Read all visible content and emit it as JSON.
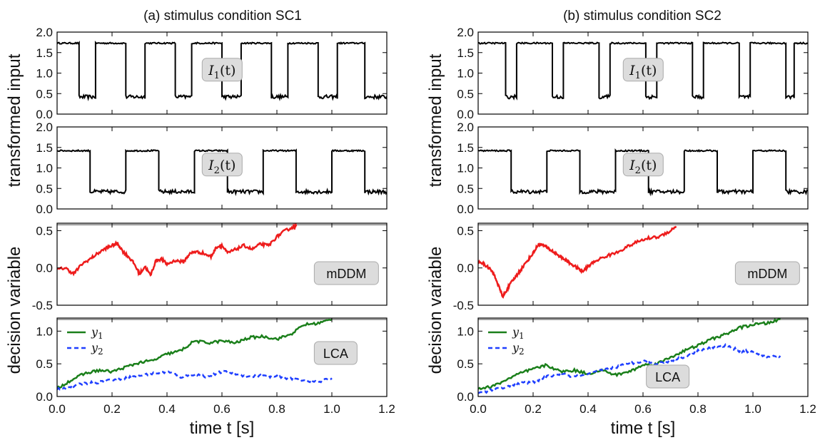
{
  "chart_data": [
    {
      "type": "line",
      "title": "(a) stimulus condition SC1",
      "panel": "I1",
      "ylim": [
        0,
        2.0
      ],
      "yticks": [
        0.0,
        0.5,
        1.0,
        1.5,
        2.0
      ],
      "xlim": [
        0,
        1.2
      ],
      "annotation": "I_1(t)",
      "series": [
        {
          "color": "#000000",
          "style": "square",
          "high": 1.73,
          "low": 0.42,
          "segments": [
            [
              0.0,
              0.08,
              "high"
            ],
            [
              0.08,
              0.14,
              "low"
            ],
            [
              0.14,
              0.25,
              "high"
            ],
            [
              0.25,
              0.32,
              "low"
            ],
            [
              0.32,
              0.43,
              "high"
            ],
            [
              0.43,
              0.49,
              "low"
            ],
            [
              0.49,
              0.6,
              "high"
            ],
            [
              0.6,
              0.67,
              "low"
            ],
            [
              0.67,
              0.78,
              "high"
            ],
            [
              0.78,
              0.84,
              "low"
            ],
            [
              0.84,
              0.95,
              "high"
            ],
            [
              0.95,
              1.02,
              "low"
            ],
            [
              1.02,
              1.12,
              "high"
            ],
            [
              1.12,
              1.2,
              "low"
            ]
          ]
        }
      ]
    },
    {
      "type": "line",
      "panel": "I2",
      "ylim": [
        0,
        2.0
      ],
      "yticks": [
        0.0,
        0.5,
        1.0,
        1.5,
        2.0
      ],
      "xlim": [
        0,
        1.2
      ],
      "annotation": "I_2(t)",
      "series": [
        {
          "color": "#000000",
          "style": "square",
          "high": 1.42,
          "low": 0.42,
          "segments": [
            [
              0.0,
              0.12,
              "high"
            ],
            [
              0.12,
              0.25,
              "low"
            ],
            [
              0.25,
              0.37,
              "high"
            ],
            [
              0.37,
              0.5,
              "low"
            ],
            [
              0.5,
              0.62,
              "high"
            ],
            [
              0.62,
              0.75,
              "low"
            ],
            [
              0.75,
              0.87,
              "high"
            ],
            [
              0.87,
              1.0,
              "low"
            ],
            [
              1.0,
              1.12,
              "high"
            ],
            [
              1.12,
              1.2,
              "low"
            ]
          ]
        }
      ]
    },
    {
      "type": "line",
      "panel": "mDDM",
      "ylim": [
        -0.5,
        0.6
      ],
      "yticks": [
        -0.5,
        0.0,
        0.5
      ],
      "xlim": [
        0,
        1.2
      ],
      "threshold": 0.58,
      "annotation": "mDDM",
      "series": [
        {
          "color": "#ee1c1c",
          "x": [
            0.0,
            0.03,
            0.06,
            0.09,
            0.12,
            0.15,
            0.18,
            0.2,
            0.22,
            0.24,
            0.26,
            0.28,
            0.3,
            0.32,
            0.34,
            0.36,
            0.38,
            0.4,
            0.43,
            0.46,
            0.48,
            0.5,
            0.53,
            0.56,
            0.58,
            0.6,
            0.62,
            0.65,
            0.68,
            0.71,
            0.74,
            0.77,
            0.8,
            0.83,
            0.86,
            0.87
          ],
          "y": [
            -0.02,
            0.0,
            -0.08,
            0.05,
            0.12,
            0.2,
            0.27,
            0.3,
            0.33,
            0.22,
            0.15,
            0.06,
            -0.08,
            0.02,
            -0.1,
            0.1,
            0.12,
            0.05,
            0.1,
            0.08,
            0.18,
            0.22,
            0.2,
            0.15,
            0.28,
            0.3,
            0.2,
            0.25,
            0.3,
            0.25,
            0.32,
            0.3,
            0.42,
            0.5,
            0.55,
            0.56
          ]
        }
      ]
    },
    {
      "type": "line",
      "panel": "LCA",
      "ylim": [
        0,
        1.2
      ],
      "yticks": [
        0.0,
        0.5,
        1.0
      ],
      "xlim": [
        0,
        1.2
      ],
      "xticks": [
        0.0,
        0.2,
        0.4,
        0.6,
        0.8,
        1.0,
        1.2
      ],
      "xlabel": "time t [s]",
      "threshold": 1.18,
      "annotation": "LCA",
      "series": [
        {
          "name": "y_1",
          "color": "#1a7f1a",
          "dash": "",
          "x": [
            0.0,
            0.05,
            0.1,
            0.15,
            0.2,
            0.25,
            0.3,
            0.35,
            0.4,
            0.45,
            0.5,
            0.55,
            0.6,
            0.65,
            0.7,
            0.75,
            0.8,
            0.85,
            0.9,
            0.95,
            1.0
          ],
          "y": [
            0.12,
            0.25,
            0.35,
            0.4,
            0.38,
            0.45,
            0.52,
            0.55,
            0.65,
            0.7,
            0.85,
            0.82,
            0.85,
            0.82,
            0.9,
            0.92,
            0.88,
            0.95,
            1.1,
            1.12,
            1.18
          ]
        },
        {
          "name": "y_2",
          "color": "#1f3fff",
          "dash": "6,4",
          "x": [
            0.0,
            0.05,
            0.1,
            0.15,
            0.2,
            0.25,
            0.3,
            0.35,
            0.4,
            0.45,
            0.5,
            0.55,
            0.6,
            0.65,
            0.7,
            0.75,
            0.8,
            0.85,
            0.9,
            0.95,
            1.0
          ],
          "y": [
            0.12,
            0.15,
            0.2,
            0.22,
            0.26,
            0.28,
            0.32,
            0.35,
            0.38,
            0.3,
            0.34,
            0.3,
            0.38,
            0.35,
            0.3,
            0.32,
            0.3,
            0.28,
            0.25,
            0.22,
            0.28
          ]
        }
      ]
    },
    {
      "type": "line",
      "title": "(b) stimulus condition SC2",
      "panel": "I1",
      "ylim": [
        0,
        2.0
      ],
      "yticks": [
        0.0,
        0.5,
        1.0,
        1.5,
        2.0
      ],
      "xlim": [
        0,
        1.2
      ],
      "annotation": "I_1(t)",
      "series": [
        {
          "color": "#000000",
          "style": "square",
          "high": 1.73,
          "low": 0.42,
          "segments": [
            [
              0.0,
              0.1,
              "high"
            ],
            [
              0.1,
              0.14,
              "low"
            ],
            [
              0.14,
              0.27,
              "high"
            ],
            [
              0.27,
              0.31,
              "low"
            ],
            [
              0.31,
              0.44,
              "high"
            ],
            [
              0.44,
              0.48,
              "low"
            ],
            [
              0.48,
              0.61,
              "high"
            ],
            [
              0.61,
              0.65,
              "low"
            ],
            [
              0.65,
              0.78,
              "high"
            ],
            [
              0.78,
              0.82,
              "low"
            ],
            [
              0.82,
              0.95,
              "high"
            ],
            [
              0.95,
              0.99,
              "low"
            ],
            [
              0.99,
              1.12,
              "high"
            ],
            [
              1.12,
              1.15,
              "low"
            ],
            [
              1.15,
              1.2,
              "high"
            ]
          ]
        }
      ]
    },
    {
      "type": "line",
      "panel": "I2",
      "ylim": [
        0,
        2.0
      ],
      "yticks": [
        0.0,
        0.5,
        1.0,
        1.5,
        2.0
      ],
      "xlim": [
        0,
        1.2
      ],
      "annotation": "I_2(t)",
      "series": [
        {
          "color": "#000000",
          "style": "square",
          "high": 1.42,
          "low": 0.42,
          "segments": [
            [
              0.0,
              0.12,
              "high"
            ],
            [
              0.12,
              0.25,
              "low"
            ],
            [
              0.25,
              0.37,
              "high"
            ],
            [
              0.37,
              0.5,
              "low"
            ],
            [
              0.5,
              0.62,
              "high"
            ],
            [
              0.62,
              0.75,
              "low"
            ],
            [
              0.75,
              0.87,
              "high"
            ],
            [
              0.87,
              1.0,
              "low"
            ],
            [
              1.0,
              1.12,
              "high"
            ],
            [
              1.12,
              1.2,
              "low"
            ]
          ]
        }
      ]
    },
    {
      "type": "line",
      "panel": "mDDM",
      "ylim": [
        -0.5,
        0.6
      ],
      "yticks": [
        -0.5,
        0.0,
        0.5
      ],
      "xlim": [
        0,
        1.2
      ],
      "threshold": 0.58,
      "annotation": "mDDM",
      "series": [
        {
          "color": "#ee1c1c",
          "x": [
            0.0,
            0.02,
            0.04,
            0.06,
            0.08,
            0.09,
            0.1,
            0.12,
            0.14,
            0.16,
            0.18,
            0.2,
            0.22,
            0.24,
            0.26,
            0.28,
            0.3,
            0.32,
            0.34,
            0.36,
            0.38,
            0.4,
            0.43,
            0.46,
            0.5,
            0.54,
            0.58,
            0.62,
            0.66,
            0.7,
            0.72
          ],
          "y": [
            0.1,
            0.05,
            0.0,
            -0.1,
            -0.3,
            -0.38,
            -0.32,
            -0.2,
            -0.1,
            0.0,
            0.1,
            0.2,
            0.32,
            0.3,
            0.25,
            0.2,
            0.15,
            0.1,
            0.05,
            0.0,
            -0.05,
            0.02,
            0.1,
            0.15,
            0.2,
            0.28,
            0.35,
            0.4,
            0.42,
            0.5,
            0.56
          ]
        }
      ]
    },
    {
      "type": "line",
      "panel": "LCA",
      "ylim": [
        0,
        1.2
      ],
      "yticks": [
        0.0,
        0.5,
        1.0
      ],
      "xlim": [
        0,
        1.2
      ],
      "xticks": [
        0.0,
        0.2,
        0.4,
        0.6,
        0.8,
        1.0,
        1.2
      ],
      "xlabel": "time t [s]",
      "threshold": 1.18,
      "annotation": "LCA",
      "series": [
        {
          "name": "y_1",
          "color": "#1a7f1a",
          "dash": "",
          "x": [
            0.0,
            0.05,
            0.1,
            0.15,
            0.2,
            0.25,
            0.3,
            0.35,
            0.4,
            0.45,
            0.5,
            0.55,
            0.6,
            0.65,
            0.7,
            0.75,
            0.8,
            0.85,
            0.9,
            0.95,
            1.0,
            1.05,
            1.1
          ],
          "y": [
            0.12,
            0.15,
            0.25,
            0.35,
            0.42,
            0.48,
            0.38,
            0.4,
            0.35,
            0.4,
            0.33,
            0.38,
            0.48,
            0.5,
            0.6,
            0.7,
            0.78,
            0.88,
            0.95,
            1.05,
            1.1,
            1.12,
            1.18
          ]
        },
        {
          "name": "y_2",
          "color": "#1f3fff",
          "dash": "6,4",
          "x": [
            0.0,
            0.05,
            0.1,
            0.15,
            0.2,
            0.25,
            0.3,
            0.35,
            0.4,
            0.45,
            0.5,
            0.55,
            0.6,
            0.65,
            0.7,
            0.75,
            0.8,
            0.85,
            0.9,
            0.95,
            1.0,
            1.05,
            1.1
          ],
          "y": [
            0.05,
            0.1,
            0.15,
            0.2,
            0.22,
            0.3,
            0.35,
            0.3,
            0.33,
            0.4,
            0.45,
            0.5,
            0.55,
            0.5,
            0.55,
            0.6,
            0.7,
            0.75,
            0.78,
            0.7,
            0.68,
            0.6,
            0.62
          ]
        }
      ]
    }
  ],
  "shared": {
    "ylabel_top": "transformed input",
    "ylabel_bottom": "decision variable",
    "legend": [
      "y_1",
      "y_2"
    ]
  }
}
